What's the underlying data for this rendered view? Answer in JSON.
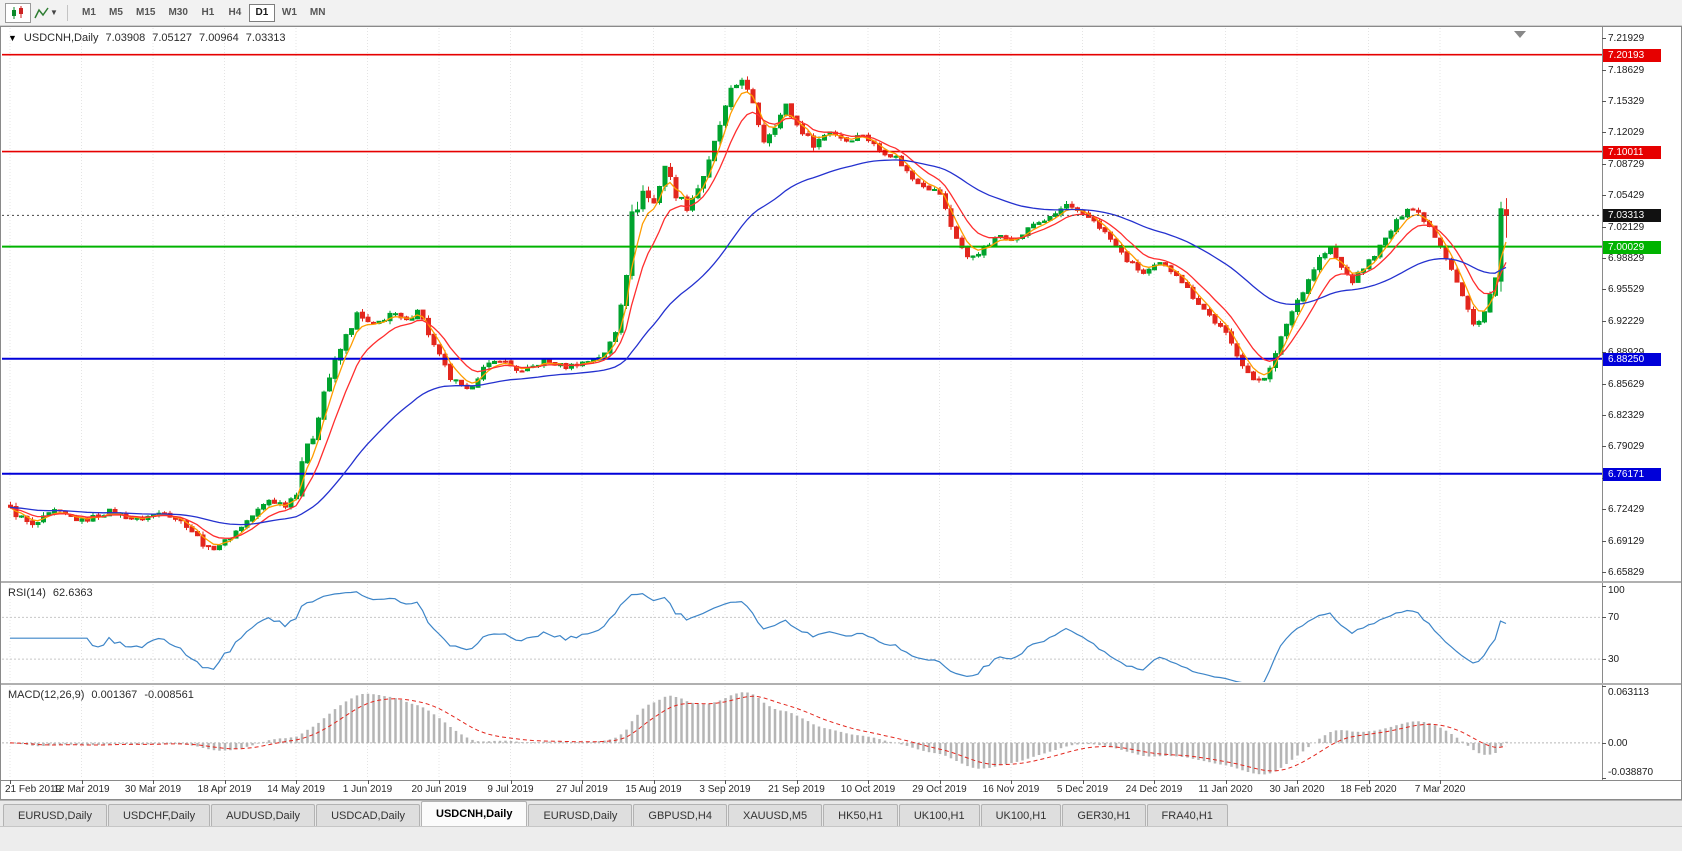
{
  "toolbar": {
    "chart_type_button": "candlestick-chart",
    "indicators_button": "indicators-dropdown",
    "timeframes": [
      "M1",
      "M5",
      "M15",
      "M30",
      "H1",
      "H4",
      "D1",
      "W1",
      "MN"
    ],
    "active_timeframe": "D1"
  },
  "chart_header": {
    "symbol_label": "USDCNH,Daily",
    "open": "7.03908",
    "high": "7.05127",
    "low": "7.00964",
    "close": "7.03313"
  },
  "price_scale": {
    "ticks": [
      "7.21929",
      "7.18629",
      "7.15329",
      "7.12029",
      "7.08729",
      "7.05429",
      "7.02129",
      "6.98829",
      "6.95529",
      "6.92229",
      "6.88929",
      "6.85629",
      "6.82329",
      "6.79029",
      "6.75729",
      "6.72429",
      "6.69129",
      "6.65829"
    ]
  },
  "chart_data": {
    "type": "candlestick",
    "symbol": "USDCNH",
    "timeframe": "Daily",
    "n_candles": 273,
    "price_range": [
      6.65,
      7.23
    ],
    "bull_color": "#00a32e",
    "bear_color": "#e3271e",
    "last_candle": {
      "open": 7.03908,
      "high": 7.05127,
      "low": 7.00964,
      "close": 7.03313
    },
    "prev_candle": {
      "open": 6.964,
      "high": 7.0475,
      "low": 6.953,
      "close": 7.04
    },
    "close_anchors": [
      [
        0,
        6.724,
        0.012
      ],
      [
        4,
        6.706,
        0.013
      ],
      [
        8,
        6.722,
        0.01
      ],
      [
        13,
        6.712,
        0.009
      ],
      [
        18,
        6.722,
        0.009
      ],
      [
        23,
        6.713,
        0.009
      ],
      [
        28,
        6.722,
        0.009
      ],
      [
        32,
        6.708,
        0.01
      ],
      [
        36,
        6.682,
        0.011
      ],
      [
        39,
        6.69,
        0.01
      ],
      [
        43,
        6.712,
        0.009
      ],
      [
        47,
        6.734,
        0.011
      ],
      [
        50,
        6.729,
        0.009
      ],
      [
        52,
        6.742,
        0.01
      ],
      [
        53,
        6.776,
        0.016
      ],
      [
        55,
        6.801,
        0.016
      ],
      [
        57,
        6.848,
        0.018
      ],
      [
        59,
        6.878,
        0.016
      ],
      [
        61,
        6.906,
        0.014
      ],
      [
        63,
        6.928,
        0.014
      ],
      [
        66,
        6.916,
        0.012
      ],
      [
        69,
        6.93,
        0.012
      ],
      [
        72,
        6.921,
        0.011
      ],
      [
        74,
        6.936,
        0.012
      ],
      [
        77,
        6.896,
        0.012
      ],
      [
        80,
        6.862,
        0.012
      ],
      [
        83,
        6.848,
        0.011
      ],
      [
        86,
        6.872,
        0.01
      ],
      [
        89,
        6.882,
        0.009
      ],
      [
        93,
        6.868,
        0.009
      ],
      [
        97,
        6.88,
        0.008
      ],
      [
        101,
        6.874,
        0.008
      ],
      [
        105,
        6.88,
        0.008
      ],
      [
        108,
        6.887,
        0.01
      ],
      [
        110,
        6.912,
        0.016
      ],
      [
        112,
        6.978,
        0.034
      ],
      [
        113,
        7.03,
        0.03
      ],
      [
        115,
        7.058,
        0.02
      ],
      [
        117,
        7.046,
        0.018
      ],
      [
        119,
        7.086,
        0.018
      ],
      [
        121,
        7.056,
        0.016
      ],
      [
        123,
        7.042,
        0.014
      ],
      [
        125,
        7.062,
        0.014
      ],
      [
        127,
        7.088,
        0.015
      ],
      [
        129,
        7.128,
        0.016
      ],
      [
        131,
        7.162,
        0.016
      ],
      [
        133,
        7.178,
        0.015
      ],
      [
        135,
        7.148,
        0.014
      ],
      [
        137,
        7.112,
        0.013
      ],
      [
        139,
        7.128,
        0.012
      ],
      [
        141,
        7.148,
        0.012
      ],
      [
        143,
        7.128,
        0.011
      ],
      [
        146,
        7.108,
        0.011
      ],
      [
        149,
        7.122,
        0.01
      ],
      [
        152,
        7.112,
        0.01
      ],
      [
        155,
        7.118,
        0.009
      ],
      [
        158,
        7.102,
        0.009
      ],
      [
        161,
        7.094,
        0.009
      ],
      [
        164,
        7.072,
        0.01
      ],
      [
        167,
        7.062,
        0.009
      ],
      [
        169,
        7.056,
        0.009
      ],
      [
        171,
        7.022,
        0.013
      ],
      [
        174,
        6.988,
        0.011
      ],
      [
        177,
        6.998,
        0.01
      ],
      [
        180,
        7.012,
        0.009
      ],
      [
        183,
        7.008,
        0.009
      ],
      [
        186,
        7.024,
        0.008
      ],
      [
        189,
        7.03,
        0.008
      ],
      [
        192,
        7.044,
        0.011
      ],
      [
        194,
        7.036,
        0.009
      ],
      [
        197,
        7.028,
        0.009
      ],
      [
        200,
        7.008,
        0.009
      ],
      [
        203,
        6.986,
        0.009
      ],
      [
        206,
        6.972,
        0.009
      ],
      [
        209,
        6.982,
        0.008
      ],
      [
        212,
        6.972,
        0.008
      ],
      [
        215,
        6.948,
        0.009
      ],
      [
        218,
        6.928,
        0.01
      ],
      [
        221,
        6.908,
        0.01
      ],
      [
        224,
        6.878,
        0.011
      ],
      [
        226,
        6.858,
        0.011
      ],
      [
        228,
        6.864,
        0.01
      ],
      [
        230,
        6.886,
        0.012
      ],
      [
        232,
        6.92,
        0.013
      ],
      [
        234,
        6.944,
        0.012
      ],
      [
        236,
        6.966,
        0.011
      ],
      [
        238,
        6.988,
        0.011
      ],
      [
        240,
        6.998,
        0.01
      ],
      [
        242,
        6.978,
        0.009
      ],
      [
        244,
        6.964,
        0.009
      ],
      [
        246,
        6.978,
        0.008
      ],
      [
        248,
        6.992,
        0.008
      ],
      [
        250,
        7.008,
        0.009
      ],
      [
        252,
        7.026,
        0.009
      ],
      [
        254,
        7.042,
        0.01
      ],
      [
        256,
        7.036,
        0.009
      ],
      [
        258,
        7.022,
        0.009
      ],
      [
        260,
        7.002,
        0.01
      ],
      [
        262,
        6.978,
        0.012
      ],
      [
        264,
        6.948,
        0.013
      ],
      [
        266,
        6.918,
        0.013
      ],
      [
        268,
        6.932,
        0.012
      ],
      [
        270,
        6.966,
        0.016
      ],
      [
        272,
        7.033,
        0.02
      ]
    ],
    "date_labels": [
      "21 Feb 2019",
      "12 Mar 2019",
      "30 Mar 2019",
      "18 Apr 2019",
      "14 May 2019",
      "1 Jun 2019",
      "20 Jun 2019",
      "9 Jul 2019",
      "27 Jul 2019",
      "15 Aug 2019",
      "3 Sep 2019",
      "21 Sep 2019",
      "10 Oct 2019",
      "29 Oct 2019",
      "16 Nov 2019",
      "5 Dec 2019",
      "24 Dec 2019",
      "11 Jan 2020",
      "30 Jan 2020",
      "18 Feb 2020",
      "7 Mar 2020"
    ],
    "label_every": 13,
    "moving_averages": [
      {
        "name": "fast-ma",
        "period": 4,
        "color": "#ff9d00"
      },
      {
        "name": "mid-ma",
        "period": 9,
        "color": "#ff2e2e"
      },
      {
        "name": "slow-ma",
        "period": 40,
        "color": "#2431cf"
      }
    ],
    "horizontal_lines": [
      {
        "label": "7.20193",
        "value": 7.20193,
        "color": "#e60000",
        "width": 1.6
      },
      {
        "label": "7.10011",
        "value": 7.10011,
        "color": "#e60000",
        "width": 1.6
      },
      {
        "label": "7.00029",
        "value": 7.00029,
        "color": "#00b300",
        "width": 2
      },
      {
        "label": "6.88250",
        "value": 6.8825,
        "color": "#0000d9",
        "width": 2
      },
      {
        "label": "6.76171",
        "value": 6.76171,
        "color": "#0000d9",
        "width": 2
      }
    ],
    "current_price": {
      "value": 7.03313,
      "label": "7.03313",
      "badge_bg": "#111111"
    }
  },
  "rsi": {
    "name_label": "RSI(14)",
    "value": "62.6363",
    "period": 14,
    "range": [
      8,
      102
    ],
    "levels": [
      70,
      30
    ],
    "ticks": [
      {
        "label": "100",
        "value": 100
      },
      {
        "label": "70",
        "value": 70
      },
      {
        "label": "30",
        "value": 30
      }
    ],
    "line_color": "#3d85c8"
  },
  "macd": {
    "name_label": "MACD(12,26,9)",
    "value_main": "0.001367",
    "value_signal": "-0.008561",
    "params": [
      12,
      26,
      9
    ],
    "range": [
      -0.03887,
      0.063113
    ],
    "ticks": [
      {
        "label": "0.063113",
        "value": 0.063113
      },
      {
        "label": "0.00",
        "value": 0
      },
      {
        "label": "-0.038870",
        "value": -0.03887
      }
    ],
    "histogram_color": "#b5b5b5",
    "signal_color": "#e3271e"
  },
  "tabs": {
    "items": [
      "EURUSD,Daily",
      "USDCHF,Daily",
      "AUDUSD,Daily",
      "USDCAD,Daily",
      "USDCNH,Daily",
      "EURUSD,Daily",
      "GBPUSD,H4",
      "XAUUSD,M5",
      "HK50,H1",
      "UK100,H1",
      "UK100,H1",
      "GER30,H1",
      "FRA40,H1"
    ],
    "active_index": 4
  }
}
